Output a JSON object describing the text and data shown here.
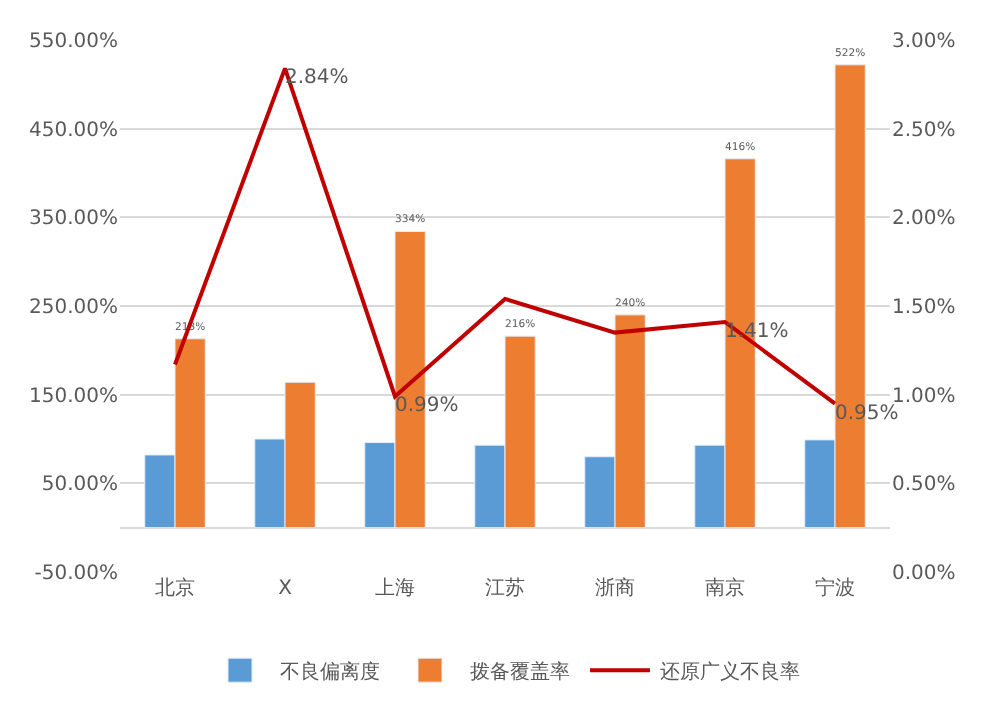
{
  "chart_data": {
    "type": "bar",
    "categories": [
      "北京",
      "X",
      "上海",
      "江苏",
      "浙商",
      "南京",
      "宁波"
    ],
    "series": [
      {
        "name": "不良偏离度",
        "color": "#5b9bd5",
        "values": [
          82,
          100,
          96,
          93,
          80,
          93,
          99
        ]
      },
      {
        "name": "拨备覆盖率",
        "color": "#ed7d31",
        "values": [
          213,
          164,
          334,
          216,
          240,
          416,
          522
        ],
        "value_labels": [
          "213%",
          null,
          "334%",
          "216%",
          "240%",
          "416%",
          "522%"
        ]
      },
      {
        "name": "还原广义不良率",
        "type": "line",
        "axis": "y2",
        "color": "#c00000",
        "marker": "none",
        "values": [
          1.17,
          2.84,
          0.99,
          1.54,
          1.35,
          1.41,
          0.95
        ],
        "value_labels": [
          null,
          "2.84%",
          "0.99%",
          null,
          null,
          "1.41%",
          "0.95%"
        ]
      }
    ],
    "ylim": [
      -50,
      550
    ],
    "yticks": [
      {
        "value": -50,
        "label": "-50.00%"
      },
      {
        "value": 50,
        "label": "50.00%"
      },
      {
        "value": 150,
        "label": "150.00%"
      },
      {
        "value": 250,
        "label": "250.00%"
      },
      {
        "value": 350,
        "label": "350.00%"
      },
      {
        "value": 450,
        "label": "450.00%"
      },
      {
        "value": 550,
        "label": "550.00%"
      }
    ],
    "y2lim": [
      0,
      3
    ],
    "y2ticks": [
      {
        "value": 0,
        "label": "0.00%"
      },
      {
        "value": 0.5,
        "label": "0.50%"
      },
      {
        "value": 1,
        "label": "1.00%"
      },
      {
        "value": 1.5,
        "label": "1.50%"
      },
      {
        "value": 2,
        "label": "2.00%"
      },
      {
        "value": 2.5,
        "label": "2.50%"
      },
      {
        "value": 3,
        "label": "3.00%"
      }
    ],
    "grid": "y",
    "legend": "bottom"
  }
}
